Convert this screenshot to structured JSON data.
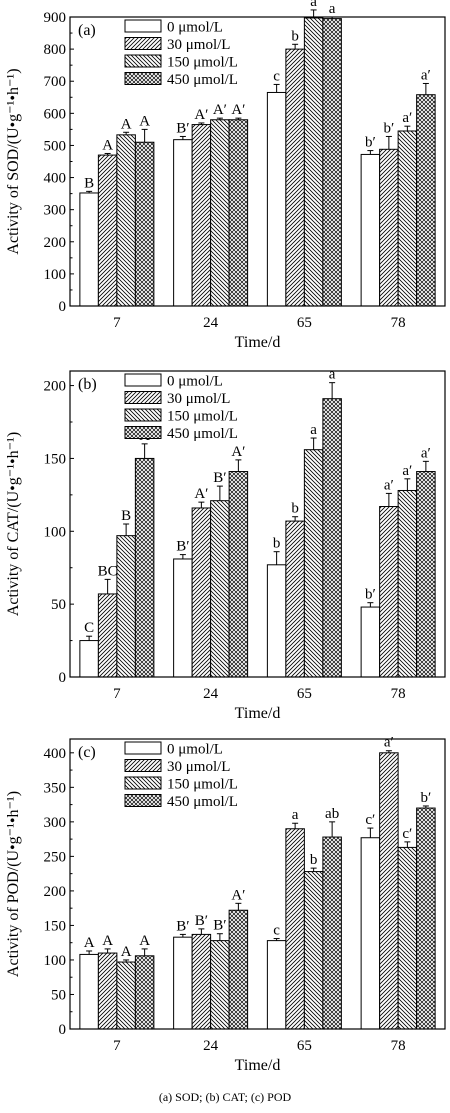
{
  "caption": "(a) SOD; (b) CAT; (c) POD",
  "chart_data": [
    {
      "type": "bar",
      "panel_label": "(a)",
      "ylabel": "Activity of SOD/(U•g⁻¹•h⁻¹)",
      "xlabel": "Time/d",
      "categories": [
        "7",
        "24",
        "65",
        "78"
      ],
      "ylim": [
        0,
        900
      ],
      "yticks": [
        0,
        100,
        200,
        300,
        400,
        500,
        600,
        700,
        800,
        900
      ],
      "legend_position": "top-left",
      "series": [
        {
          "name": "0  μmol/L",
          "values": [
            352,
            518,
            665,
            472
          ],
          "errors": [
            5,
            10,
            25,
            12
          ],
          "labels": [
            "B",
            "B′",
            "c",
            "b′"
          ]
        },
        {
          "name": "30  μmol/L",
          "values": [
            470,
            565,
            800,
            488
          ],
          "errors": [
            5,
            5,
            15,
            40
          ],
          "labels": [
            "A",
            "A′",
            "b",
            "b′"
          ]
        },
        {
          "name": "150  μmol/L",
          "values": [
            533,
            580,
            897,
            545
          ],
          "errors": [
            8,
            5,
            25,
            15
          ],
          "labels": [
            "A",
            "A′",
            "a",
            "a′"
          ]
        },
        {
          "name": "450  μmol/L",
          "values": [
            510,
            580,
            895,
            658
          ],
          "errors": [
            40,
            5,
            5,
            35
          ],
          "labels": [
            "A",
            "A′",
            "a",
            "a′"
          ]
        }
      ]
    },
    {
      "type": "bar",
      "panel_label": "(b)",
      "ylabel": "Activity of CAT/(U•g⁻¹•h⁻¹)",
      "xlabel": "Time/d",
      "categories": [
        "7",
        "24",
        "65",
        "78"
      ],
      "ylim": [
        0,
        210
      ],
      "yticks": [
        0,
        50,
        100,
        150,
        200
      ],
      "legend_position": "top-left",
      "series": [
        {
          "name": "0  μmol/L",
          "values": [
            25,
            81,
            77,
            48
          ],
          "errors": [
            3,
            3,
            9,
            3
          ],
          "labels": [
            "C",
            "B′",
            "b",
            "b′"
          ]
        },
        {
          "name": "30  μmol/L",
          "values": [
            57,
            116,
            107,
            117
          ],
          "errors": [
            10,
            4,
            3,
            9
          ],
          "labels": [
            "BC",
            "A′",
            "b",
            "a′"
          ]
        },
        {
          "name": "150  μmol/L",
          "values": [
            97,
            121,
            156,
            128
          ],
          "errors": [
            8,
            10,
            8,
            8
          ],
          "labels": [
            "B",
            "B′",
            "a",
            "a′"
          ]
        },
        {
          "name": "450  μmol/L",
          "values": [
            150,
            141,
            191,
            141
          ],
          "errors": [
            10,
            8,
            11,
            7
          ],
          "labels": [
            "A",
            "A′",
            "a",
            "a′"
          ]
        }
      ]
    },
    {
      "type": "bar",
      "panel_label": "(c)",
      "ylabel": "Activity of POD/(U•g⁻¹•h⁻¹)",
      "xlabel": "Time/d",
      "categories": [
        "7",
        "24",
        "65",
        "78"
      ],
      "ylim": [
        0,
        420
      ],
      "yticks": [
        0,
        50,
        100,
        150,
        200,
        250,
        300,
        350,
        400
      ],
      "legend_position": "top-left",
      "series": [
        {
          "name": "0  μmol/L",
          "values": [
            108,
            133,
            128,
            277
          ],
          "errors": [
            5,
            4,
            3,
            14
          ],
          "labels": [
            "A",
            "B′",
            "c",
            "c′"
          ]
        },
        {
          "name": "30  μmol/L",
          "values": [
            110,
            137,
            290,
            400
          ],
          "errors": [
            6,
            8,
            8,
            3
          ],
          "labels": [
            "A",
            "B′",
            "a",
            "a′"
          ]
        },
        {
          "name": "150  μmol/L",
          "values": [
            97,
            128,
            228,
            263
          ],
          "errors": [
            3,
            10,
            5,
            8
          ],
          "labels": [
            "A",
            "B′",
            "b",
            "c′"
          ]
        },
        {
          "name": "450  μmol/L",
          "values": [
            106,
            172,
            278,
            320
          ],
          "errors": [
            10,
            10,
            22,
            3
          ],
          "labels": [
            "A",
            "A′",
            "ab",
            "b′"
          ]
        }
      ]
    }
  ]
}
